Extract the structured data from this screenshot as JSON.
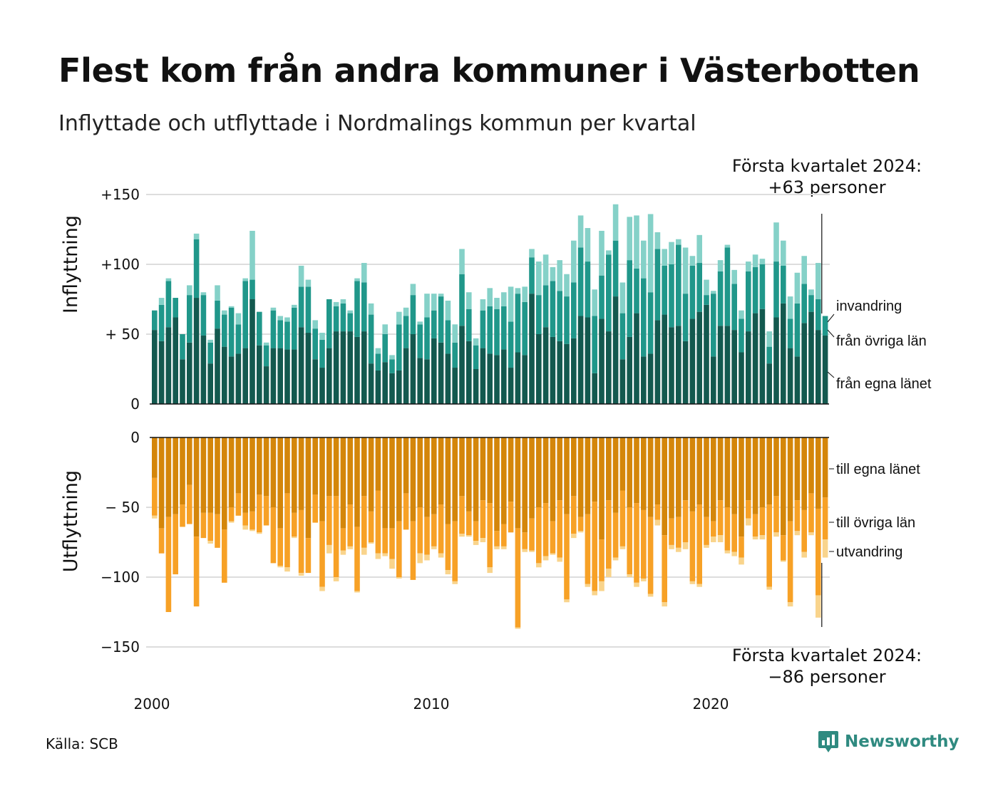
{
  "title": "Flest kom från andra kommuner i Västerbotten",
  "subtitle": "Inflyttade och utflyttade i Nordmalings kommun per kvartal",
  "annotation_top": {
    "line1": "Första kvartalet 2024:",
    "line2": "+63 personer"
  },
  "annotation_bottom": {
    "line1": "Första kvartalet 2024:",
    "line2": "−86 personer"
  },
  "source": "Källa: SCB",
  "logo": {
    "name": "Newsworthy",
    "icon": "newsworthy-logo-icon",
    "color": "#2f8a80"
  },
  "colors": {
    "in_own": "#13594f",
    "in_other": "#20978a",
    "in_immigration": "#85d1c8",
    "out_own": "#d4860a",
    "out_other": "#f7a126",
    "out_emigration": "#f9d48c",
    "grid": "#dddddd",
    "axis": "#111111"
  },
  "chart_data": [
    {
      "type": "bar",
      "stacked": true,
      "title": "",
      "ylabel": "Inflyttning",
      "ylim": [
        0,
        150
      ],
      "yticks": [
        0,
        50,
        100,
        150
      ],
      "ytick_labels": [
        "0",
        "+ 50",
        "+100",
        "+150"
      ],
      "x_start": "2000 Q1",
      "x_end": "2024 Q1",
      "series": [
        {
          "name": "från egna länet",
          "values": [
            53,
            45,
            55,
            62,
            32,
            44,
            76,
            49,
            29,
            54,
            41,
            34,
            36,
            40,
            75,
            42,
            27,
            40,
            40,
            39,
            39,
            55,
            51,
            32,
            26,
            40,
            52,
            52,
            52,
            48,
            52,
            29,
            24,
            30,
            22,
            24,
            40,
            50,
            33,
            32,
            47,
            44,
            36,
            26,
            56,
            45,
            25,
            40,
            36,
            35,
            39,
            26,
            37,
            35,
            79,
            50,
            55,
            48,
            45,
            43,
            47,
            63,
            62,
            22,
            61,
            52,
            77,
            32,
            48,
            65,
            34,
            36,
            60,
            64,
            55,
            56,
            45,
            61,
            66,
            71,
            34,
            56,
            56,
            53,
            37,
            52,
            65,
            68,
            29,
            62,
            72,
            40,
            34,
            58,
            66,
            53,
            49
          ]
        },
        {
          "name": "från övriga län",
          "values": [
            14,
            26,
            33,
            14,
            18,
            34,
            42,
            29,
            15,
            20,
            23,
            35,
            21,
            48,
            14,
            24,
            15,
            27,
            20,
            20,
            30,
            29,
            33,
            22,
            20,
            35,
            18,
            20,
            13,
            40,
            35,
            35,
            12,
            20,
            10,
            33,
            23,
            28,
            24,
            30,
            20,
            33,
            24,
            18,
            37,
            23,
            17,
            27,
            34,
            33,
            31,
            33,
            42,
            38,
            26,
            28,
            30,
            40,
            36,
            34,
            40,
            49,
            40,
            41,
            31,
            55,
            40,
            33,
            55,
            32,
            56,
            44,
            51,
            35,
            45,
            58,
            34,
            38,
            35,
            7,
            45,
            39,
            56,
            33,
            24,
            43,
            33,
            32,
            12,
            40,
            27,
            21,
            38,
            28,
            12,
            22,
            14
          ]
        },
        {
          "name": "invandring",
          "values": [
            0,
            5,
            2,
            0,
            0,
            7,
            4,
            2,
            2,
            11,
            3,
            1,
            8,
            2,
            35,
            0,
            2,
            2,
            3,
            3,
            2,
            15,
            5,
            6,
            5,
            0,
            3,
            3,
            2,
            2,
            14,
            8,
            4,
            7,
            3,
            9,
            6,
            8,
            2,
            17,
            12,
            2,
            14,
            13,
            18,
            12,
            5,
            8,
            13,
            8,
            10,
            25,
            4,
            11,
            6,
            24,
            22,
            10,
            22,
            16,
            30,
            23,
            24,
            19,
            32,
            3,
            26,
            22,
            31,
            38,
            27,
            56,
            12,
            12,
            16,
            4,
            33,
            7,
            20,
            11,
            2,
            8,
            2,
            10,
            6,
            7,
            9,
            4,
            11,
            28,
            18,
            16,
            22,
            20,
            4,
            26,
            0
          ]
        }
      ]
    },
    {
      "type": "bar",
      "stacked": true,
      "title": "",
      "ylabel": "Utflyttning",
      "ylim": [
        -150,
        0
      ],
      "yticks": [
        0,
        -50,
        -100,
        -150
      ],
      "ytick_labels": [
        "0",
        "− 50",
        "−100",
        "−150"
      ],
      "x_start": "2000 Q1",
      "x_end": "2024 Q1",
      "series": [
        {
          "name": "till egna länet",
          "values": [
            -29,
            -65,
            -57,
            -55,
            -48,
            -34,
            -71,
            -54,
            -54,
            -55,
            -66,
            -50,
            -40,
            -54,
            -53,
            -41,
            -42,
            -50,
            -65,
            -40,
            -54,
            -52,
            -72,
            -41,
            -60,
            -42,
            -42,
            -65,
            -48,
            -64,
            -42,
            -53,
            -38,
            -65,
            -65,
            -60,
            -40,
            -60,
            -50,
            -57,
            -55,
            -48,
            -62,
            -60,
            -42,
            -53,
            -60,
            -45,
            -47,
            -67,
            -62,
            -46,
            -65,
            -68,
            -58,
            -50,
            -47,
            -60,
            -45,
            -55,
            -42,
            -57,
            -55,
            -46,
            -73,
            -45,
            -54,
            -38,
            -50,
            -47,
            -52,
            -57,
            -48,
            -70,
            -58,
            -57,
            -45,
            -53,
            -48,
            -57,
            -60,
            -45,
            -50,
            -55,
            -71,
            -45,
            -55,
            -50,
            -48,
            -42,
            -70,
            -60,
            -45,
            -52,
            -40,
            -51,
            -43
          ]
        },
        {
          "name": "till övriga län",
          "values": [
            -27,
            -18,
            -68,
            -43,
            -16,
            -28,
            -50,
            -18,
            -20,
            -24,
            -38,
            -10,
            -16,
            -9,
            -13,
            -27,
            -21,
            -40,
            -27,
            -53,
            -17,
            -45,
            -25,
            -20,
            -47,
            -35,
            -58,
            -16,
            -30,
            -46,
            -37,
            -22,
            -45,
            -18,
            -22,
            -40,
            -26,
            -42,
            -33,
            -27,
            -23,
            -35,
            -33,
            -43,
            -27,
            -17,
            -14,
            -27,
            -46,
            -11,
            -16,
            -22,
            -71,
            -12,
            -23,
            -40,
            -38,
            -23,
            -41,
            -61,
            -27,
            -10,
            -50,
            -64,
            -30,
            -49,
            -32,
            -40,
            -48,
            -57,
            -49,
            -55,
            -11,
            -48,
            -19,
            -22,
            -30,
            -50,
            -57,
            -20,
            -11,
            -25,
            -31,
            -27,
            -15,
            -13,
            -16,
            -20,
            -59,
            -26,
            -18,
            -58,
            -22,
            -30,
            -28,
            -62,
            -30
          ]
        },
        {
          "name": "utvandring",
          "values": [
            -2,
            0,
            0,
            0,
            0,
            0,
            0,
            0,
            -2,
            0,
            0,
            -1,
            0,
            -3,
            -1,
            -1,
            0,
            0,
            -1,
            -3,
            -1,
            -2,
            0,
            0,
            -3,
            -6,
            -3,
            -3,
            -2,
            -1,
            -5,
            -1,
            -4,
            -2,
            -7,
            -1,
            0,
            0,
            -7,
            -4,
            -2,
            -3,
            -3,
            -2,
            -2,
            -1,
            -3,
            -3,
            -4,
            -2,
            -2,
            0,
            -1,
            -2,
            -1,
            -3,
            -3,
            -1,
            -3,
            -2,
            -3,
            -1,
            -2,
            -3,
            -7,
            -6,
            -2,
            -2,
            -2,
            -3,
            -2,
            -2,
            -4,
            -3,
            -3,
            -3,
            -5,
            -2,
            -2,
            -2,
            -4,
            -5,
            -2,
            -3,
            -5,
            -5,
            -2,
            -3,
            -2,
            -3,
            -1,
            -3,
            -3,
            -4,
            -2,
            -16,
            -13
          ]
        }
      ]
    }
  ],
  "x_ticks": [
    "2000",
    "2010",
    "2020"
  ],
  "segment_labels_top": [
    "invandring",
    "från övriga län",
    "från egna länet"
  ],
  "segment_labels_bottom": [
    "till egna länet",
    "till övriga län",
    "utvandring"
  ]
}
